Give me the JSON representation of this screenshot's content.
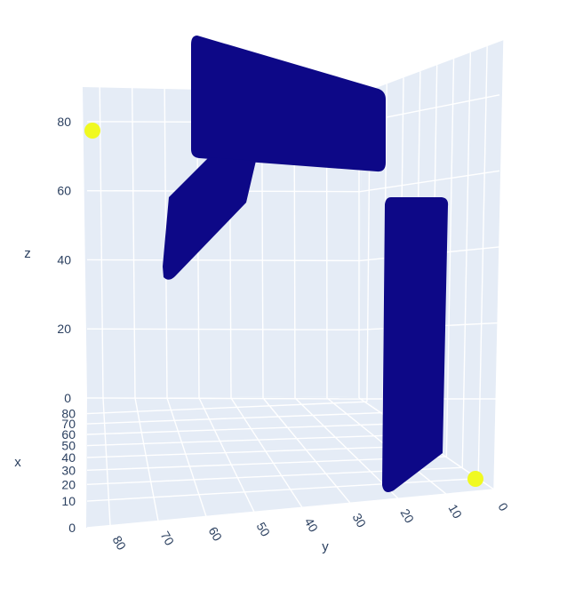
{
  "chart_data": {
    "type": "scatter3d",
    "title": "",
    "axes": {
      "x": {
        "label": "x",
        "range": [
          0,
          85
        ],
        "ticks": [
          "0",
          "10",
          "20",
          "30",
          "40",
          "50",
          "60",
          "70",
          "80"
        ]
      },
      "y": {
        "label": "y",
        "range": [
          0,
          85
        ],
        "ticks": [
          "0",
          "10",
          "20",
          "30",
          "40",
          "50",
          "60",
          "70",
          "80"
        ]
      },
      "z": {
        "label": "z",
        "range": [
          0,
          90
        ],
        "ticks": [
          "0",
          "20",
          "40",
          "60",
          "80"
        ]
      }
    },
    "grid": true,
    "colors": {
      "background": "#e5ecf6",
      "grid": "#ffffff",
      "low": "#0d0887",
      "high": "#f0f921",
      "text": "#2a3f5f"
    },
    "series": [
      {
        "shape": "slab",
        "color_value": "low",
        "approx_ranges": {
          "x": [
            20,
            80
          ],
          "y": [
            45,
            80
          ],
          "z": [
            65,
            90
          ]
        }
      },
      {
        "shape": "slab",
        "color_value": "low",
        "approx_ranges": {
          "x": [
            40,
            80
          ],
          "y": [
            50,
            70
          ],
          "z": [
            35,
            65
          ]
        }
      },
      {
        "shape": "slab",
        "color_value": "low",
        "approx_ranges": {
          "x": [
            20,
            40
          ],
          "y": [
            10,
            20
          ],
          "z": [
            0,
            60
          ]
        }
      },
      {
        "shape": "point",
        "color_value": "high",
        "x": 85,
        "y": 85,
        "z": 80
      },
      {
        "shape": "point",
        "color_value": "high",
        "x": 0,
        "y": 0,
        "z": 0
      }
    ]
  }
}
